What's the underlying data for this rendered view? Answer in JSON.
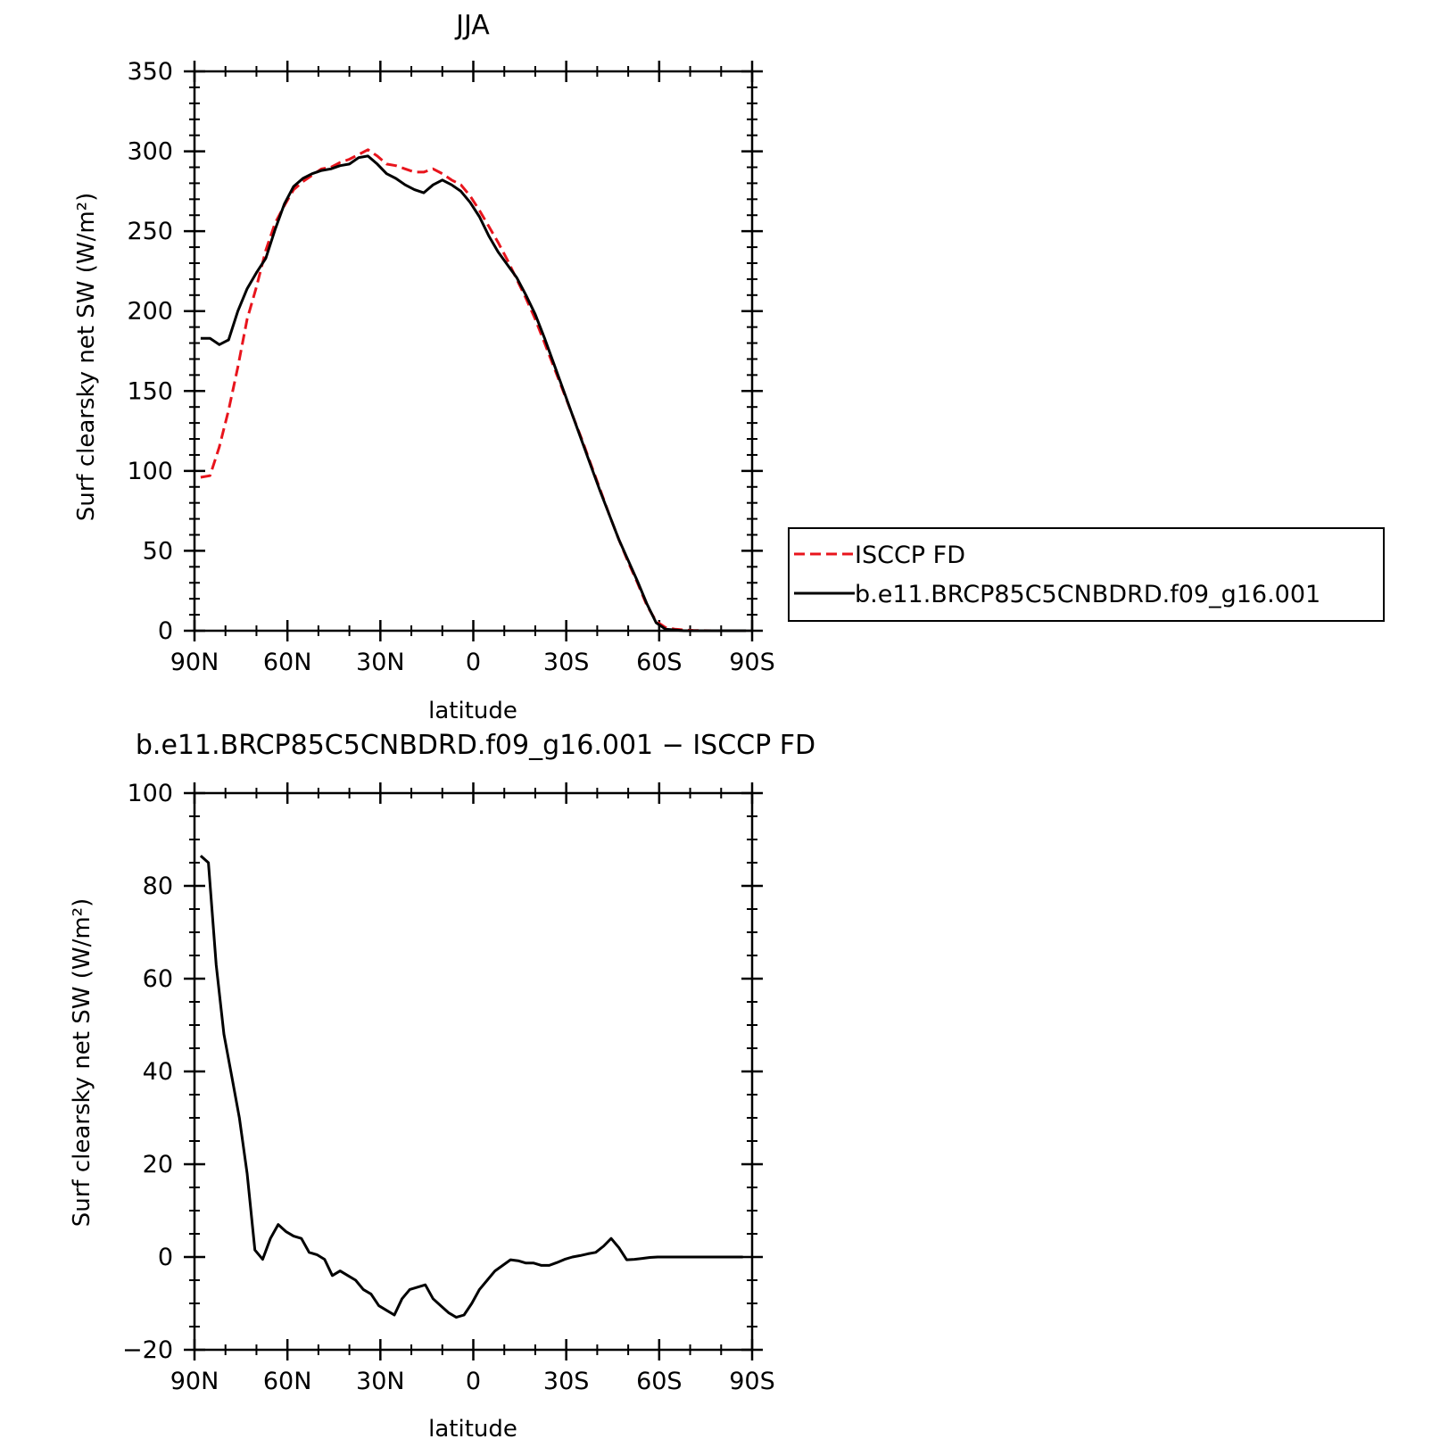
{
  "chart_data": [
    {
      "type": "line",
      "title": "JJA",
      "xlabel": "latitude",
      "ylabel": "Surf clearsky net SW (W/m²)",
      "xlim": [
        90,
        -90
      ],
      "ylim": [
        0,
        350
      ],
      "xticks": [
        {
          "value": 90,
          "label": "90N"
        },
        {
          "value": 60,
          "label": "60N"
        },
        {
          "value": 30,
          "label": "30N"
        },
        {
          "value": 0,
          "label": "0"
        },
        {
          "value": -30,
          "label": "30S"
        },
        {
          "value": -60,
          "label": "60S"
        },
        {
          "value": -90,
          "label": "90S"
        }
      ],
      "yticks": [
        {
          "value": 0,
          "label": "0"
        },
        {
          "value": 50,
          "label": "50"
        },
        {
          "value": 100,
          "label": "100"
        },
        {
          "value": 150,
          "label": "150"
        },
        {
          "value": 200,
          "label": "200"
        },
        {
          "value": 250,
          "label": "250"
        },
        {
          "value": 300,
          "label": "300"
        },
        {
          "value": 350,
          "label": "350"
        }
      ],
      "legend_position": "right",
      "series": [
        {
          "name": "ISCCP FD",
          "color": "#e8141c",
          "dash": "dashed",
          "x": [
            88,
            85,
            82,
            79,
            76,
            73,
            70,
            67,
            64,
            61,
            58,
            55,
            52,
            49,
            46,
            43,
            40,
            37,
            34,
            31,
            28,
            25,
            22,
            19,
            16,
            13,
            10,
            7,
            4,
            1,
            -2,
            -5,
            -8,
            -11,
            -14,
            -17,
            -20,
            -23,
            -26,
            -29,
            -32,
            -35,
            -38,
            -41,
            -44,
            -47,
            -50,
            -53,
            -56,
            -59,
            -62,
            -65,
            -68,
            -71,
            -74,
            -77,
            -80,
            -83,
            -86,
            -88
          ],
          "y": [
            96,
            97,
            115,
            138,
            165,
            195,
            215,
            238,
            255,
            266,
            276,
            281,
            285,
            289,
            290,
            293,
            295,
            298,
            301,
            297,
            292,
            291,
            289,
            287,
            287,
            289,
            286,
            282,
            279,
            272,
            263,
            253,
            243,
            232,
            220,
            208,
            195,
            180,
            165,
            150,
            135,
            120,
            104,
            88,
            72,
            57,
            43,
            30,
            16,
            6,
            2,
            1,
            0.5,
            0.2,
            0.1,
            0,
            0,
            0,
            0,
            0
          ]
        },
        {
          "name": "b.e11.BRCP85C5CNBDRD.f09_g16.001",
          "color": "#000000",
          "dash": "solid",
          "x": [
            88,
            85,
            82,
            79,
            76,
            73,
            70,
            67,
            64,
            61,
            58,
            55,
            52,
            49,
            46,
            43,
            40,
            37,
            34,
            31,
            28,
            25,
            22,
            19,
            16,
            13,
            10,
            7,
            4,
            1,
            -2,
            -5,
            -8,
            -11,
            -14,
            -17,
            -20,
            -23,
            -26,
            -29,
            -32,
            -35,
            -38,
            -41,
            -44,
            -47,
            -50,
            -53,
            -56,
            -59,
            -62,
            -65,
            -68,
            -71,
            -74,
            -77,
            -80,
            -83,
            -86,
            -88
          ],
          "y": [
            183,
            183,
            179,
            182,
            200,
            214,
            224,
            233,
            251,
            267,
            278,
            283,
            286,
            288,
            289,
            291,
            292,
            296,
            297,
            292,
            286,
            283,
            279,
            276,
            274,
            279,
            282,
            279,
            275,
            268,
            259,
            247,
            237,
            229,
            221,
            210,
            198,
            183,
            167,
            151,
            135,
            119,
            103,
            87,
            72,
            57,
            44,
            31,
            17,
            5,
            1,
            0.5,
            0,
            0,
            0,
            0,
            0,
            0,
            0,
            0
          ]
        }
      ]
    },
    {
      "type": "line",
      "title": "b.e11.BRCP85C5CNBDRD.f09_g16.001 − ISCCP FD",
      "xlabel": "latitude",
      "ylabel": "Surf clearsky net SW (W/m²)",
      "xlim": [
        90,
        -90
      ],
      "ylim": [
        -20,
        100
      ],
      "xticks": [
        {
          "value": 90,
          "label": "90N"
        },
        {
          "value": 60,
          "label": "60N"
        },
        {
          "value": 30,
          "label": "30N"
        },
        {
          "value": 0,
          "label": "0"
        },
        {
          "value": -30,
          "label": "30S"
        },
        {
          "value": -60,
          "label": "60S"
        },
        {
          "value": -90,
          "label": "90S"
        }
      ],
      "yticks": [
        {
          "value": -20,
          "label": "−20"
        },
        {
          "value": 0,
          "label": "0"
        },
        {
          "value": 20,
          "label": "20"
        },
        {
          "value": 40,
          "label": "40"
        },
        {
          "value": 60,
          "label": "60"
        },
        {
          "value": 80,
          "label": "80"
        },
        {
          "value": 100,
          "label": "100"
        }
      ],
      "series": [
        {
          "color": "#000000",
          "dash": "solid",
          "x": [
            88,
            85.5,
            83,
            80.5,
            78,
            75.5,
            73,
            70.5,
            68,
            65.5,
            63,
            60.5,
            58,
            55.5,
            53,
            50.5,
            48,
            45.5,
            43,
            40.5,
            38,
            35.5,
            33,
            30.5,
            28,
            25.5,
            23,
            20.5,
            18,
            15.5,
            13,
            10.5,
            8,
            5.5,
            3,
            0.5,
            -2,
            -4.5,
            -7,
            -9.5,
            -12,
            -14.5,
            -17,
            -19.5,
            -22,
            -24.5,
            -27,
            -29.5,
            -32,
            -34.5,
            -37,
            -39.5,
            -42,
            -44.5,
            -47,
            -49.5,
            -52,
            -54.5,
            -57,
            -59.5,
            -62,
            -64.5,
            -67,
            -69.5,
            -72,
            -74.5,
            -77,
            -79.5,
            -82,
            -84.5,
            -87
          ],
          "y": [
            86.5,
            85,
            63,
            48,
            39,
            30,
            18,
            1.5,
            -0.5,
            4,
            7,
            5.5,
            4.5,
            4,
            1,
            0.5,
            -0.5,
            -4,
            -3,
            -4,
            -5,
            -7,
            -8,
            -10.5,
            -11.5,
            -12.5,
            -9,
            -7,
            -6.5,
            -6,
            -9,
            -10.5,
            -12,
            -13,
            -12.5,
            -10,
            -7,
            -5,
            -3,
            -1.8,
            -0.6,
            -0.8,
            -1.3,
            -1.3,
            -1.8,
            -1.8,
            -1.2,
            -0.5,
            0,
            0.3,
            0.7,
            1,
            2.3,
            4,
            2,
            -0.6,
            -0.5,
            -0.3,
            -0.1,
            0,
            0,
            0,
            0,
            0,
            0,
            0,
            0,
            0,
            0,
            0,
            0
          ]
        }
      ]
    }
  ]
}
